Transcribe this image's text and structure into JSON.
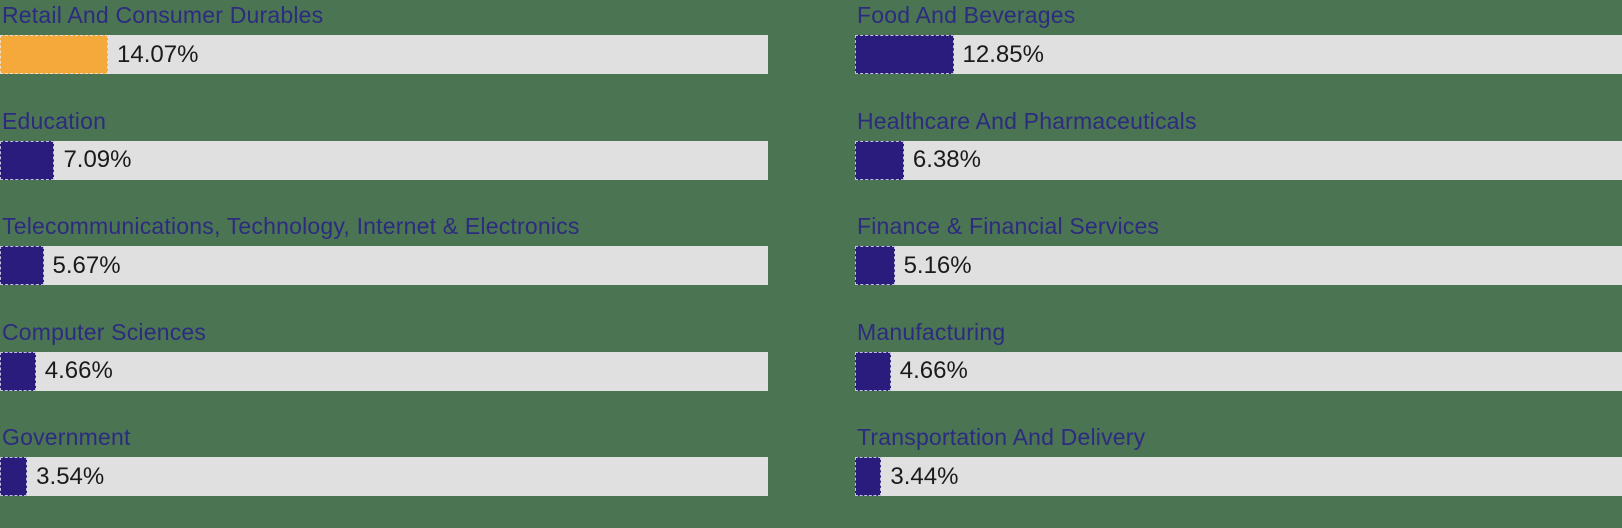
{
  "background_color": "#4A7452",
  "colors": {
    "track": "#E0E0E0",
    "category_label": "#2D2B80",
    "value_label": "#1A1A1A",
    "highlight_bar": "#F5A93B",
    "default_bar": "#291C7D"
  },
  "chart_data": {
    "type": "bar",
    "orientation": "horizontal",
    "unit": "%",
    "axis_range": [
      0,
      100
    ],
    "grid": false,
    "legend": false,
    "layout": "two-column list of labeled horizontal bars, value printed at end of fill",
    "columns": [
      {
        "items": [
          {
            "label": "Retail And Consumer Durables",
            "value": 14.07,
            "display_value": "14.07%",
            "bar_color": "#F5A93B"
          },
          {
            "label": "Education",
            "value": 7.09,
            "display_value": "7.09%",
            "bar_color": "#291C7D"
          },
          {
            "label": "Telecommunications, Technology, Internet & Electronics",
            "value": 5.67,
            "display_value": "5.67%",
            "bar_color": "#291C7D"
          },
          {
            "label": "Computer Sciences",
            "value": 4.66,
            "display_value": "4.66%",
            "bar_color": "#291C7D"
          },
          {
            "label": "Government",
            "value": 3.54,
            "display_value": "3.54%",
            "bar_color": "#291C7D"
          }
        ]
      },
      {
        "items": [
          {
            "label": "Food And Beverages",
            "value": 12.85,
            "display_value": "12.85%",
            "bar_color": "#291C7D"
          },
          {
            "label": "Healthcare And Pharmaceuticals",
            "value": 6.38,
            "display_value": "6.38%",
            "bar_color": "#291C7D"
          },
          {
            "label": "Finance & Financial Services",
            "value": 5.16,
            "display_value": "5.16%",
            "bar_color": "#291C7D"
          },
          {
            "label": "Manufacturing",
            "value": 4.66,
            "display_value": "4.66%",
            "bar_color": "#291C7D"
          },
          {
            "label": "Transportation And Delivery",
            "value": 3.44,
            "display_value": "3.44%",
            "bar_color": "#291C7D"
          }
        ]
      }
    ]
  }
}
